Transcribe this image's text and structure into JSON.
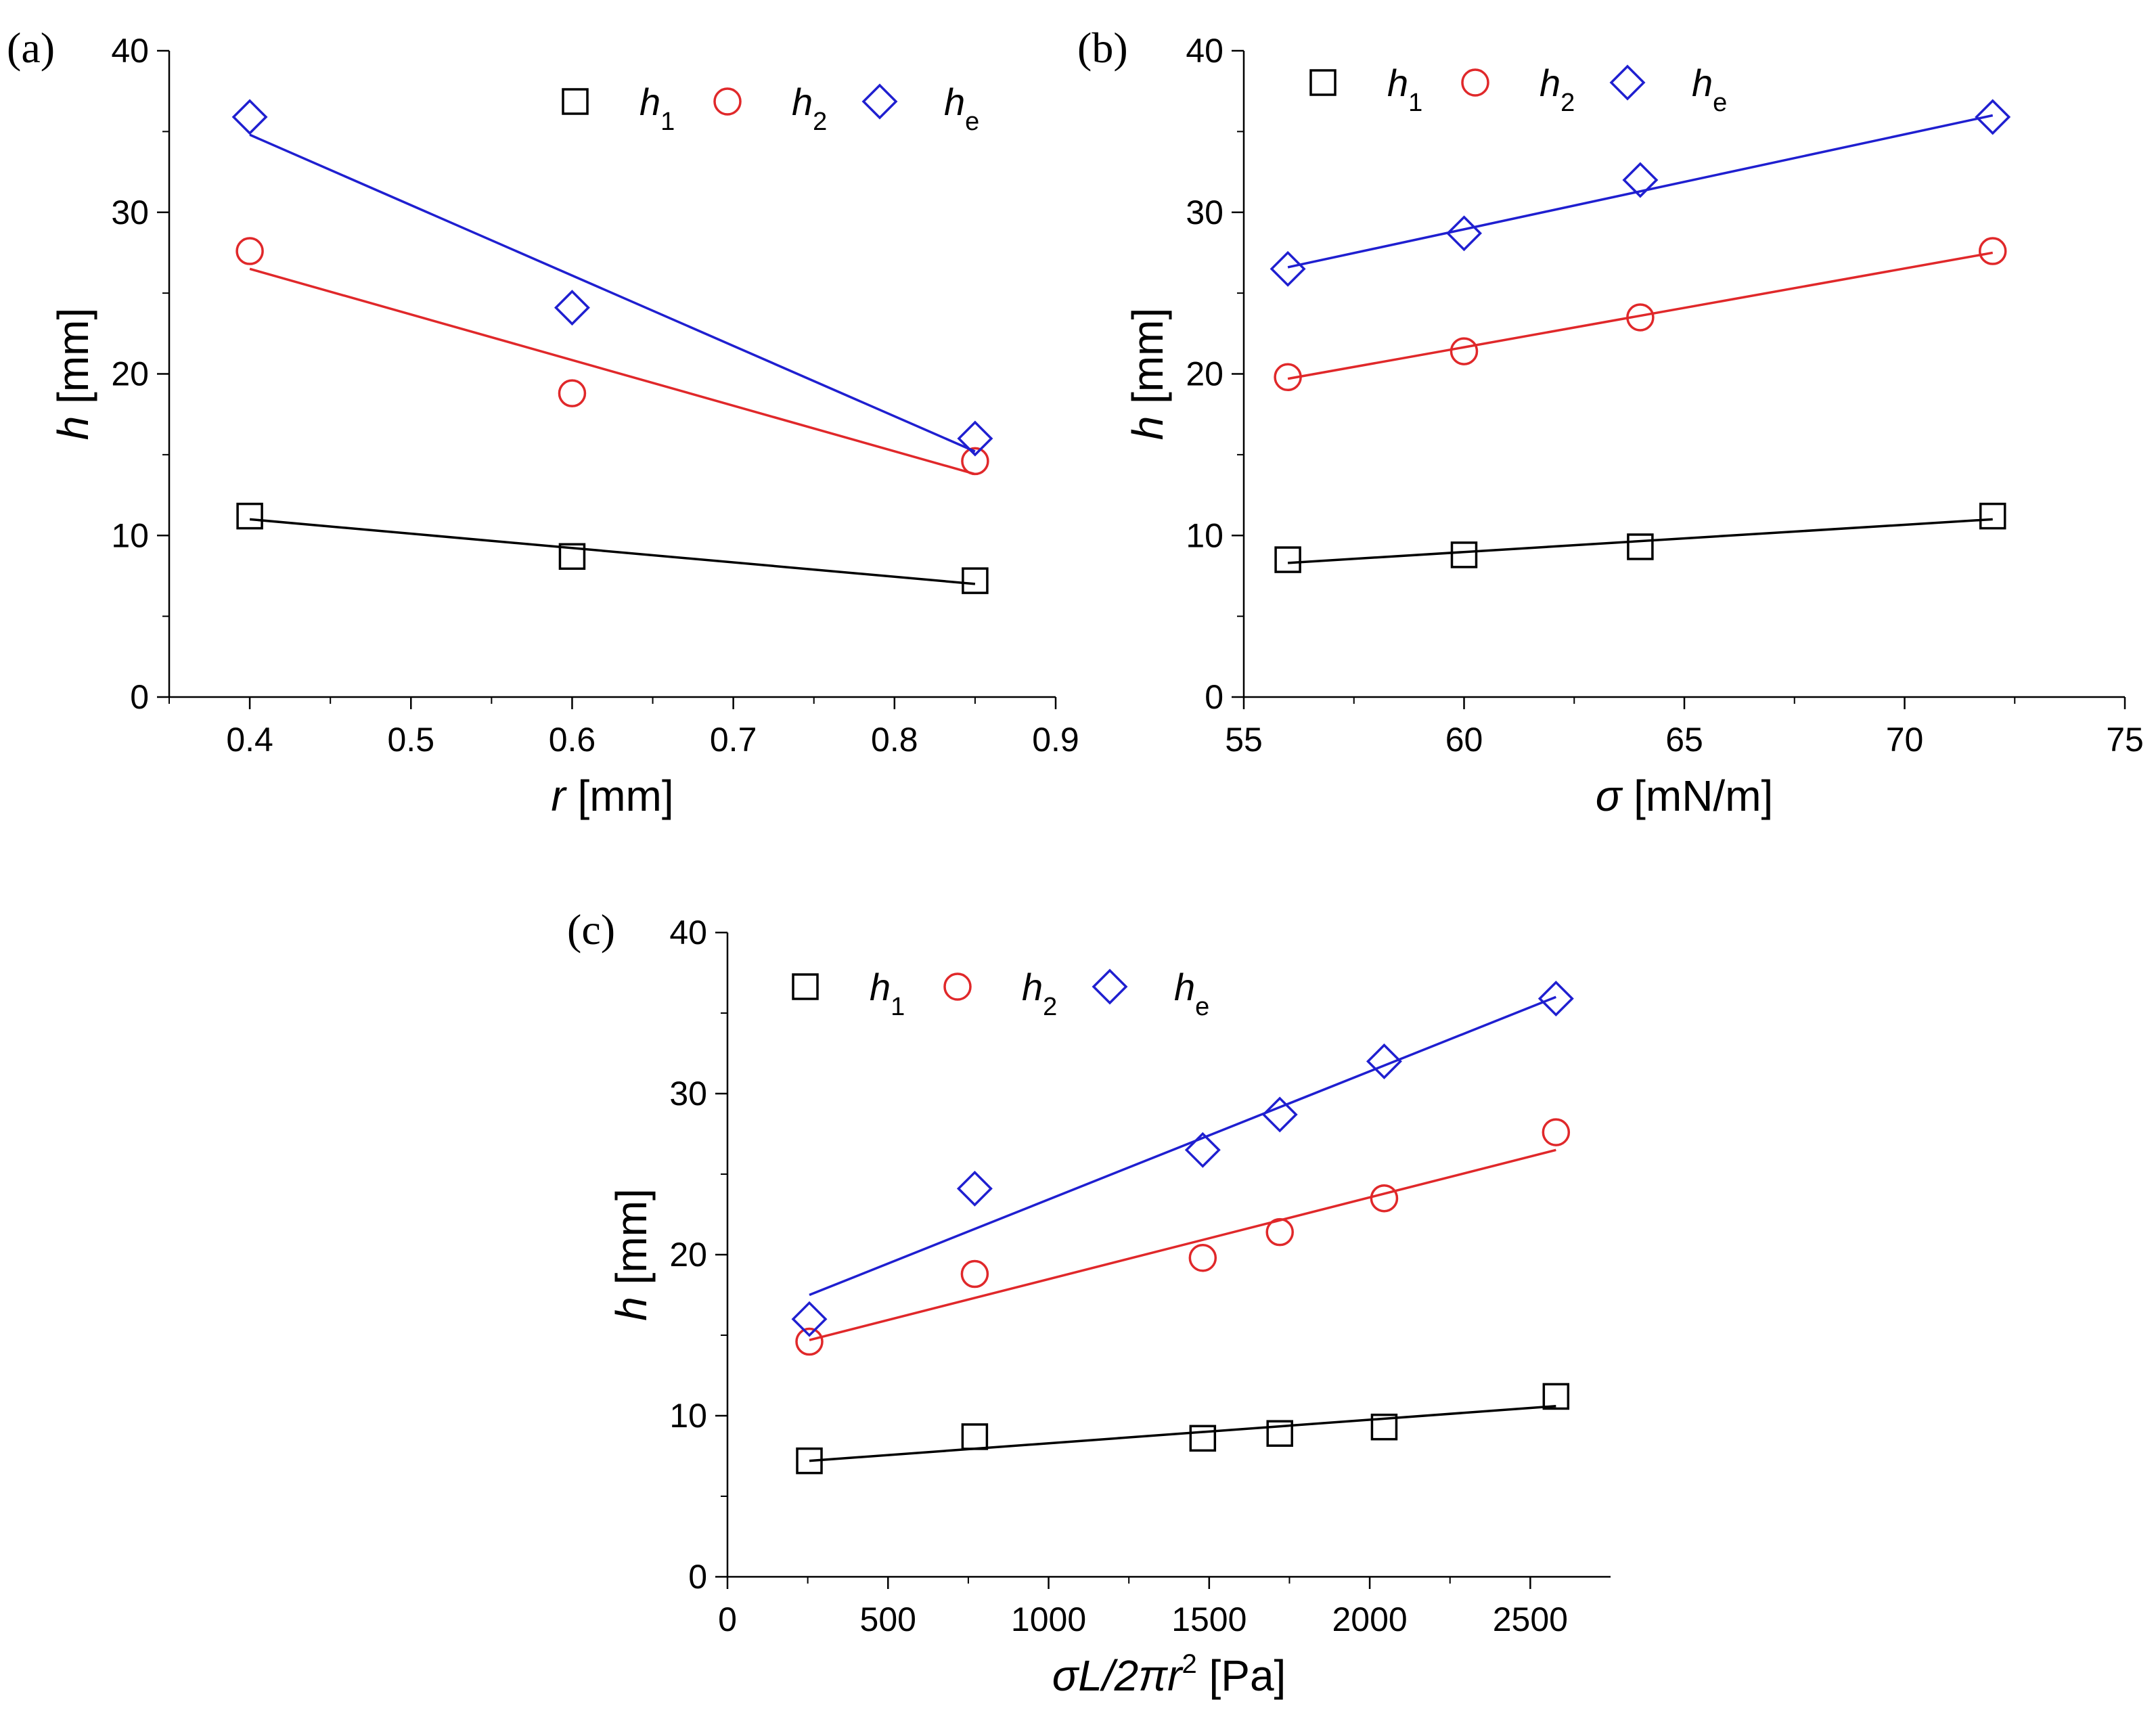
{
  "colors": {
    "h1": "#000000",
    "h2": "#e0282a",
    "he": "#1f1fd0",
    "axis": "#000000"
  },
  "legend": {
    "h1": {
      "main": "h",
      "sub": "1"
    },
    "h2": {
      "main": "h",
      "sub": "2"
    },
    "he": {
      "main": "h",
      "sub": "e"
    }
  },
  "chart_data": [
    {
      "id": "a",
      "type": "scatter",
      "panel_label": "(a)",
      "xlabel": {
        "var": "r",
        "unit": " [mm]"
      },
      "ylabel": {
        "var": "h",
        "unit": " [mm]"
      },
      "xlim": [
        0.35,
        0.9
      ],
      "ylim": [
        0,
        40
      ],
      "xticks": [
        0.4,
        0.5,
        0.6,
        0.7,
        0.8,
        0.9
      ],
      "xtick_labels": [
        "0.4",
        "0.5",
        "0.6",
        "0.7",
        "0.8",
        "0.9"
      ],
      "yticks": [
        0,
        10,
        20,
        30,
        40
      ],
      "ytick_labels": [
        "0",
        "10",
        "20",
        "30",
        "40"
      ],
      "series": [
        {
          "key": "h1",
          "marker": "square",
          "x": [
            0.4,
            0.6,
            0.85
          ],
          "y": [
            11.2,
            8.7,
            7.2
          ],
          "fit": [
            [
              0.4,
              11.0
            ],
            [
              0.85,
              7.0
            ]
          ]
        },
        {
          "key": "h2",
          "marker": "circle",
          "x": [
            0.4,
            0.6,
            0.85
          ],
          "y": [
            27.6,
            18.8,
            14.6
          ],
          "fit": [
            [
              0.4,
              26.5
            ],
            [
              0.85,
              13.8
            ]
          ]
        },
        {
          "key": "he",
          "marker": "diamond",
          "x": [
            0.4,
            0.6,
            0.85
          ],
          "y": [
            35.9,
            24.1,
            16.0
          ],
          "fit": [
            [
              0.4,
              34.8
            ],
            [
              0.85,
              15.2
            ]
          ]
        }
      ]
    },
    {
      "id": "b",
      "type": "scatter",
      "panel_label": "(b)",
      "xlabel": {
        "var": "σ",
        "unit": " [mN/m]"
      },
      "ylabel": {
        "var": "h",
        "unit": " [mm]"
      },
      "xlim": [
        55,
        75
      ],
      "ylim": [
        0,
        40
      ],
      "xticks": [
        55,
        60,
        65,
        70,
        75
      ],
      "xtick_labels": [
        "55",
        "60",
        "65",
        "70",
        "75"
      ],
      "yticks": [
        0,
        10,
        20,
        30,
        40
      ],
      "ytick_labels": [
        "0",
        "10",
        "20",
        "30",
        "40"
      ],
      "series": [
        {
          "key": "h1",
          "marker": "square",
          "x": [
            56,
            60,
            64,
            72
          ],
          "y": [
            8.5,
            8.8,
            9.3,
            11.2
          ],
          "fit": [
            [
              56,
              8.3
            ],
            [
              72,
              11.0
            ]
          ]
        },
        {
          "key": "h2",
          "marker": "circle",
          "x": [
            56,
            60,
            64,
            72
          ],
          "y": [
            19.8,
            21.4,
            23.5,
            27.6
          ],
          "fit": [
            [
              56,
              19.7
            ],
            [
              72,
              27.5
            ]
          ]
        },
        {
          "key": "he",
          "marker": "diamond",
          "x": [
            56,
            60,
            64,
            72
          ],
          "y": [
            26.5,
            28.7,
            32.0,
            35.9
          ],
          "fit": [
            [
              56,
              26.6
            ],
            [
              72,
              36.0
            ]
          ]
        }
      ]
    },
    {
      "id": "c",
      "type": "scatter",
      "panel_label": "(c)",
      "xlabel": {
        "var": "σL/2πr",
        "sup": "2",
        "unit": " [Pa]"
      },
      "ylabel": {
        "var": "h",
        "unit": " [mm]"
      },
      "xlim": [
        0,
        2750
      ],
      "ylim": [
        0,
        40
      ],
      "xticks": [
        0,
        500,
        1000,
        1500,
        2000,
        2500
      ],
      "xtick_labels": [
        "0",
        "500",
        "1000",
        "1500",
        "2000",
        "2500"
      ],
      "yticks": [
        0,
        10,
        20,
        30,
        40
      ],
      "ytick_labels": [
        "0",
        "10",
        "20",
        "30",
        "40"
      ],
      "series": [
        {
          "key": "h1",
          "marker": "square",
          "x": [
            255,
            770,
            1480,
            1720,
            2045,
            2580
          ],
          "y": [
            7.2,
            8.7,
            8.6,
            8.9,
            9.3,
            11.2
          ],
          "fit": [
            [
              255,
              7.2
            ],
            [
              2580,
              10.6
            ]
          ]
        },
        {
          "key": "h2",
          "marker": "circle",
          "x": [
            255,
            770,
            1480,
            1720,
            2045,
            2580
          ],
          "y": [
            14.6,
            18.8,
            19.8,
            21.4,
            23.5,
            27.6
          ],
          "fit": [
            [
              255,
              14.7
            ],
            [
              2580,
              26.5
            ]
          ]
        },
        {
          "key": "he",
          "marker": "diamond",
          "x": [
            255,
            770,
            1480,
            1720,
            2045,
            2580
          ],
          "y": [
            16.0,
            24.1,
            26.5,
            28.7,
            32.0,
            35.9
          ],
          "fit": [
            [
              255,
              17.5
            ],
            [
              2580,
              36.0
            ]
          ]
        }
      ]
    }
  ]
}
